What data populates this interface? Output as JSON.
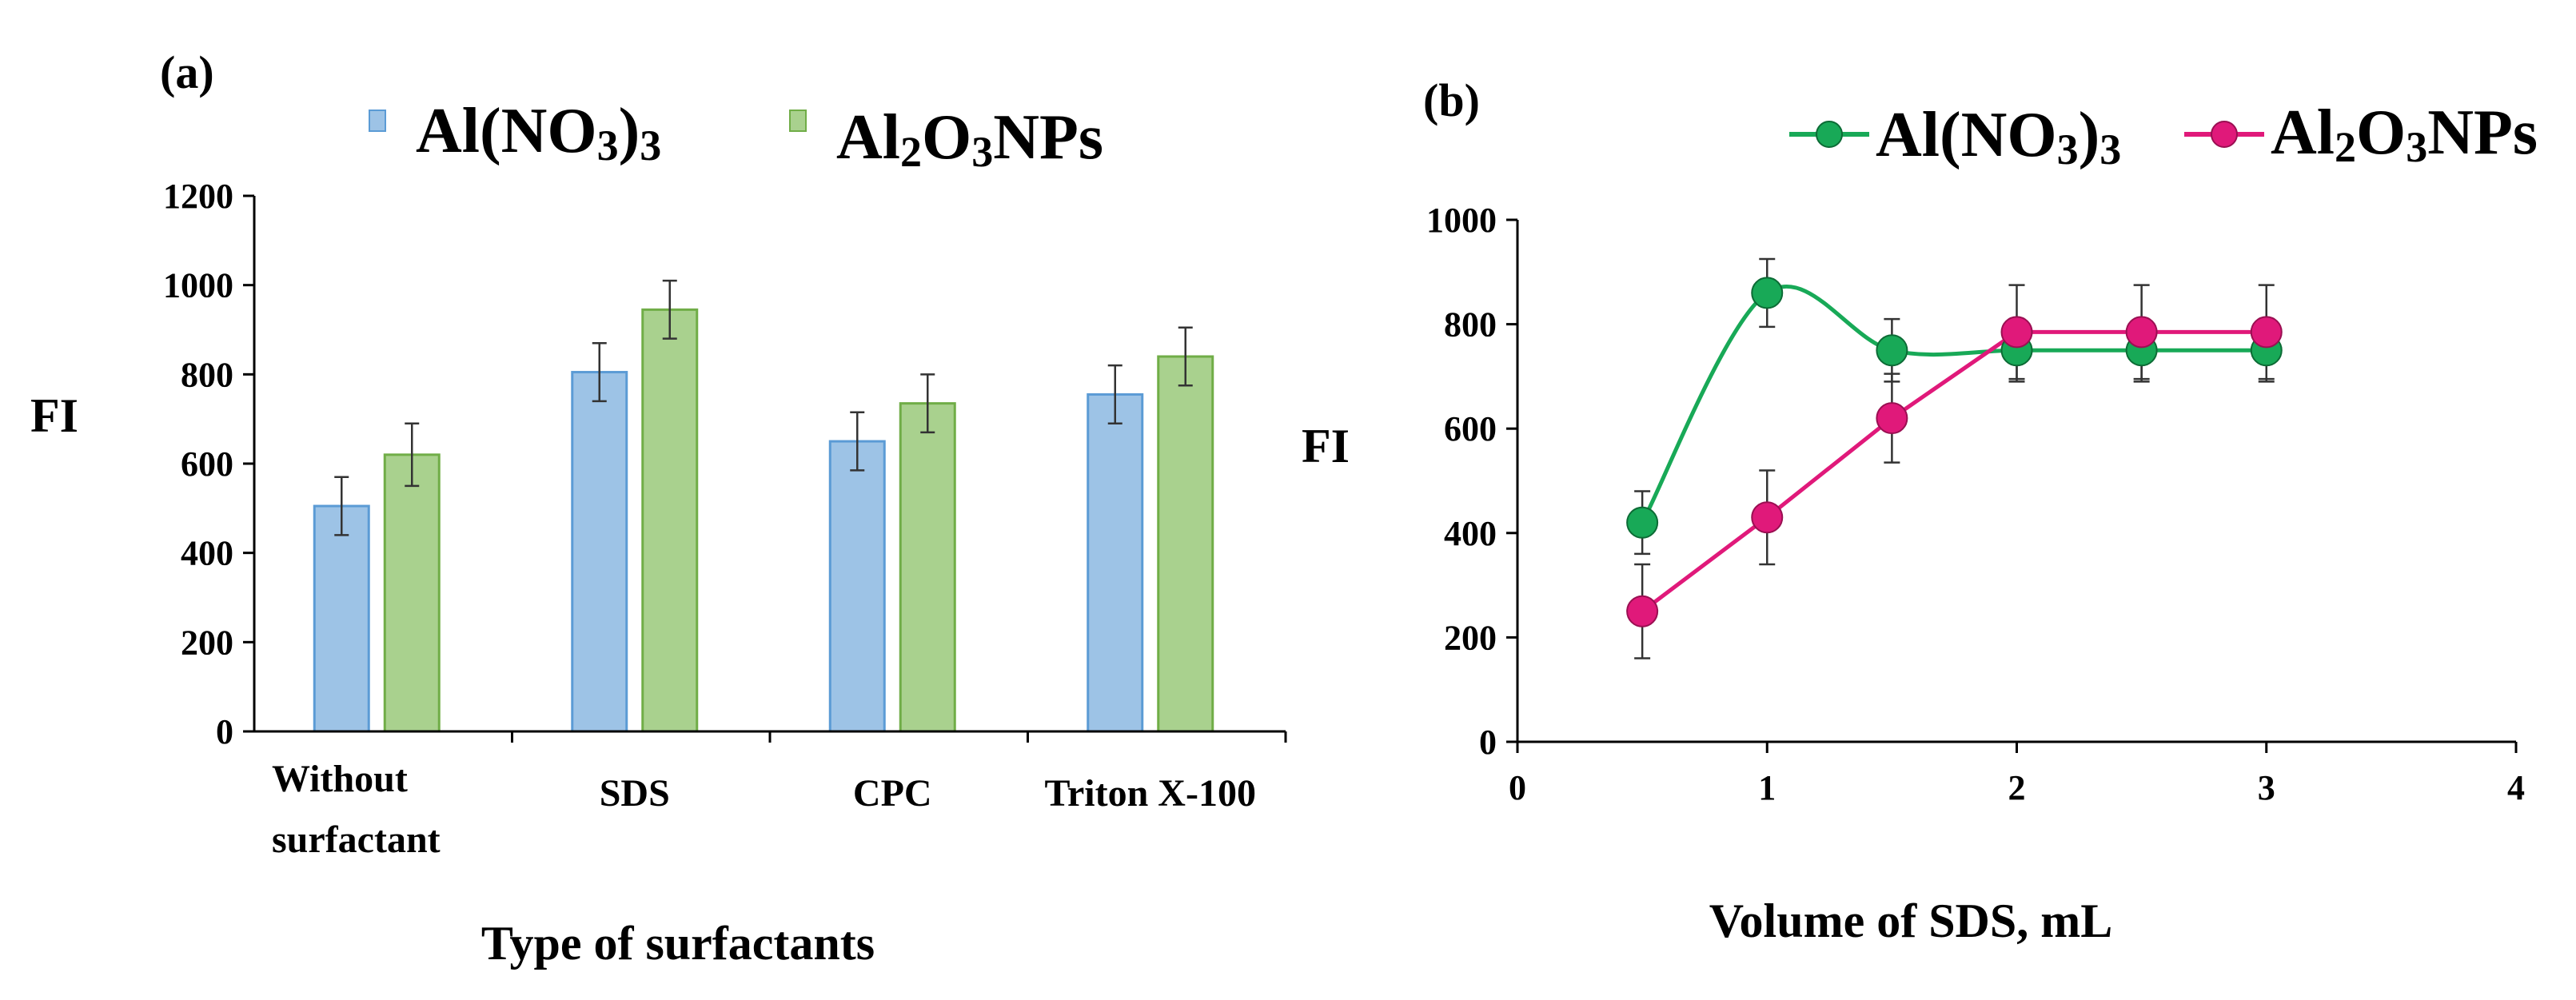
{
  "panel_a": {
    "label": "(a)",
    "ylabel": "FI",
    "xlabel": "Type of surfactants"
  },
  "panel_b": {
    "label": "(b)",
    "ylabel": "FI",
    "xlabel": "Volume of SDS, mL"
  },
  "colors": {
    "blue_bar": "#9DC3E6",
    "green_bar": "#A9D18E",
    "green_line": "#18A957",
    "pink_line": "#E0197A"
  },
  "chart_data": [
    {
      "type": "bar",
      "title": "(a)",
      "xlabel": "Type of surfactants",
      "ylabel": "FI",
      "ylim": [
        0,
        1200
      ],
      "yticks": [
        0,
        200,
        400,
        600,
        800,
        1000,
        1200
      ],
      "categories": [
        "Without surfactant",
        "SDS",
        "CPC",
        "Triton X-100"
      ],
      "category_lines": [
        [
          "Without",
          "surfactant"
        ],
        [
          "SDS"
        ],
        [
          "CPC"
        ],
        [
          "Triton X-100"
        ]
      ],
      "legend": "top",
      "series": [
        {
          "name": "Al(NO3)3",
          "values": [
            505,
            805,
            650,
            755
          ],
          "errors": [
            65,
            65,
            65,
            65
          ],
          "color": "#9DC3E6"
        },
        {
          "name": "Al2O3NPs",
          "values": [
            620,
            945,
            735,
            840
          ],
          "errors": [
            70,
            65,
            65,
            65
          ],
          "color": "#A9D18E"
        }
      ]
    },
    {
      "type": "line",
      "title": "(b)",
      "xlabel": "Volume of SDS, mL",
      "ylabel": "FI",
      "xlim": [
        0,
        4
      ],
      "ylim": [
        0,
        1000
      ],
      "xticks": [
        0,
        1,
        2,
        3,
        4
      ],
      "yticks": [
        0,
        200,
        400,
        600,
        800,
        1000
      ],
      "legend": "top-right",
      "series": [
        {
          "name": "Al(NO3)3",
          "x": [
            0.5,
            1,
            1.5,
            2,
            2.5,
            3
          ],
          "y": [
            420,
            860,
            750,
            750,
            750,
            750
          ],
          "errors": [
            60,
            65,
            60,
            60,
            60,
            60
          ],
          "color": "#18A957",
          "smooth": true
        },
        {
          "name": "Al2O3NPs",
          "x": [
            0.5,
            1,
            1.5,
            2,
            2.5,
            3
          ],
          "y": [
            250,
            430,
            620,
            785,
            785,
            785
          ],
          "errors": [
            90,
            90,
            85,
            90,
            90,
            90
          ],
          "color": "#E0197A",
          "smooth": false
        }
      ]
    }
  ]
}
